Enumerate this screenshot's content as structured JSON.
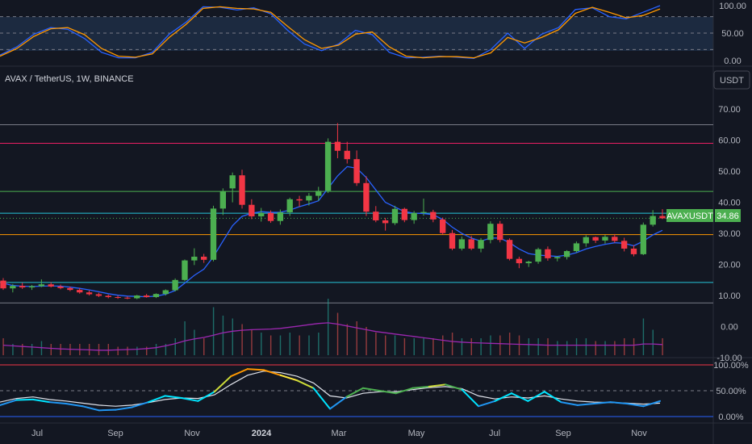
{
  "header": {
    "title": "AVAX / TetherUS, 1W, BINANCE",
    "currency_button": "USDT"
  },
  "price_badge": {
    "symbol": "AVAXUSDT",
    "value": "34.86"
  },
  "colors": {
    "background": "#131722",
    "up": "#4caf50",
    "down": "#f23645",
    "ma_blue": "#2962ff",
    "rsi_purple": "#9c27b0",
    "stoch_blue": "#2962ff",
    "stoch_orange": "#ff9800",
    "level_pink": "#e91e63",
    "level_green": "#4caf50",
    "level_teal": "#26c6da",
    "level_orange": "#ff9800",
    "level_gray": "#787b86",
    "band_red": "#f23645",
    "band_blue": "#2962ff",
    "badge_green": "#4caf50"
  },
  "chart_data": [
    {
      "type": "line",
      "panel": "stochastic",
      "yticks": [
        "100.00",
        "50.00",
        "0.00"
      ],
      "ylim": [
        0,
        100
      ],
      "levels": [
        80,
        50,
        20
      ],
      "series": [
        {
          "values": [
            10,
            25,
            48,
            60,
            57,
            40,
            15,
            5,
            5,
            15,
            48,
            70,
            98,
            97,
            92,
            96,
            85,
            55,
            30,
            18,
            30,
            55,
            47,
            15,
            5,
            6,
            8,
            6,
            4,
            20,
            50,
            22,
            48,
            60,
            93,
            96,
            80,
            76,
            88,
            100
          ]
        },
        {
          "values": [
            8,
            22,
            44,
            58,
            60,
            47,
            22,
            8,
            6,
            12,
            42,
            66,
            95,
            98,
            95,
            94,
            88,
            62,
            38,
            22,
            28,
            48,
            52,
            25,
            8,
            5,
            7,
            7,
            5,
            14,
            42,
            32,
            42,
            56,
            86,
            97,
            88,
            78,
            82,
            94
          ]
        }
      ]
    },
    {
      "type": "candlestick",
      "panel": "price",
      "symbol": "AVAX / TetherUS, 1W, BINANCE",
      "yticks": [
        "70.00",
        "60.00",
        "50.00",
        "40.00",
        "30.00",
        "20.00",
        "10.00",
        "0.00",
        "-10.00"
      ],
      "ylim": [
        -10,
        75
      ],
      "xticks": [
        "Jul",
        "Sep",
        "Nov",
        "2024",
        "Mar",
        "May",
        "Jul",
        "Sep",
        "Nov"
      ],
      "ohlc": [
        [
          14.8,
          15.6,
          11.8,
          12.3
        ],
        [
          12.3,
          13.7,
          11.0,
          13.1
        ],
        [
          13.1,
          14.1,
          12.1,
          12.6
        ],
        [
          12.6,
          13.4,
          11.8,
          13.0
        ],
        [
          13.0,
          15.2,
          12.7,
          13.6
        ],
        [
          13.6,
          14.3,
          12.6,
          12.9
        ],
        [
          12.9,
          13.5,
          12.0,
          12.4
        ],
        [
          12.4,
          12.9,
          11.4,
          11.8
        ],
        [
          11.8,
          12.4,
          10.6,
          11.0
        ],
        [
          11.0,
          11.6,
          10.0,
          10.4
        ],
        [
          10.4,
          10.9,
          9.5,
          9.9
        ],
        [
          9.9,
          10.3,
          9.1,
          9.5
        ],
        [
          9.5,
          10.0,
          8.9,
          9.3
        ],
        [
          9.3,
          9.7,
          8.8,
          9.1
        ],
        [
          9.1,
          10.2,
          8.8,
          10.0
        ],
        [
          10.0,
          10.5,
          9.3,
          9.5
        ],
        [
          9.5,
          10.7,
          9.2,
          10.5
        ],
        [
          10.5,
          12.0,
          10.0,
          11.7
        ],
        [
          11.7,
          15.5,
          11.3,
          15.0
        ],
        [
          15.0,
          21.6,
          14.6,
          21.3
        ],
        [
          21.3,
          25.2,
          19.8,
          22.5
        ],
        [
          22.5,
          23.4,
          20.5,
          21.5
        ],
        [
          21.5,
          38.9,
          21.0,
          38.0
        ],
        [
          38.0,
          44.5,
          35.9,
          43.6
        ],
        [
          44.5,
          49.6,
          40.0,
          48.7
        ],
        [
          48.7,
          50.5,
          38.0,
          39.2
        ],
        [
          39.2,
          41.0,
          34.6,
          35.5
        ],
        [
          35.5,
          38.2,
          33.8,
          36.6
        ],
        [
          36.6,
          37.4,
          33.4,
          34.0
        ],
        [
          34.0,
          37.7,
          32.8,
          36.8
        ],
        [
          36.8,
          41.5,
          35.6,
          41.0
        ],
        [
          41.0,
          42.1,
          38.6,
          40.6
        ],
        [
          40.6,
          43.0,
          39.0,
          42.1
        ],
        [
          42.1,
          45.0,
          40.5,
          43.7
        ],
        [
          43.7,
          60.6,
          43.0,
          59.5
        ],
        [
          59.5,
          65.5,
          54.2,
          56.6
        ],
        [
          56.6,
          59.5,
          52.5,
          53.9
        ],
        [
          53.9,
          56.7,
          45.3,
          46.2
        ],
        [
          46.2,
          48.4,
          35.6,
          37.0
        ],
        [
          37.0,
          38.8,
          33.6,
          34.2
        ],
        [
          34.2,
          35.0,
          30.9,
          33.3
        ],
        [
          33.3,
          38.9,
          32.7,
          37.9
        ],
        [
          37.9,
          38.3,
          33.6,
          34.3
        ],
        [
          34.3,
          37.2,
          33.1,
          36.6
        ],
        [
          36.6,
          41.2,
          35.7,
          36.9
        ],
        [
          36.9,
          37.6,
          33.6,
          34.5
        ],
        [
          34.5,
          35.1,
          29.6,
          30.1
        ],
        [
          30.1,
          31.1,
          24.6,
          25.1
        ],
        [
          25.1,
          29.0,
          24.5,
          28.1
        ],
        [
          28.1,
          29.2,
          24.6,
          25.1
        ],
        [
          25.1,
          28.5,
          23.9,
          27.9
        ],
        [
          27.9,
          33.9,
          26.8,
          33.1
        ],
        [
          33.1,
          34.0,
          27.1,
          27.9
        ],
        [
          27.9,
          28.4,
          21.3,
          21.8
        ],
        [
          21.8,
          22.5,
          18.8,
          20.4
        ],
        [
          20.4,
          21.2,
          19.2,
          20.9
        ],
        [
          20.9,
          25.4,
          20.2,
          24.9
        ],
        [
          24.9,
          25.8,
          21.2,
          22.0
        ],
        [
          22.0,
          22.6,
          21.0,
          22.4
        ],
        [
          22.4,
          24.6,
          21.6,
          24.3
        ],
        [
          24.3,
          27.4,
          23.8,
          26.8
        ],
        [
          26.8,
          29.4,
          25.7,
          28.8
        ],
        [
          28.8,
          29.0,
          26.9,
          27.7
        ],
        [
          27.7,
          29.5,
          26.7,
          28.9
        ],
        [
          28.9,
          29.8,
          27.0,
          27.6
        ],
        [
          27.6,
          28.6,
          24.2,
          25.1
        ],
        [
          25.1,
          26.2,
          22.6,
          23.3
        ],
        [
          23.3,
          33.5,
          23.0,
          32.8
        ],
        [
          32.8,
          37.5,
          32.2,
          35.6
        ],
        [
          35.6,
          37.8,
          34.6,
          34.86
        ]
      ],
      "last_price": 34.86,
      "ma": [
        14.0,
        13.2,
        13.0,
        12.9,
        13.0,
        13.1,
        13.0,
        12.7,
        12.3,
        11.8,
        11.2,
        10.6,
        10.1,
        9.8,
        9.7,
        9.6,
        9.8,
        10.4,
        11.6,
        14.0,
        16.5,
        18.5,
        22.5,
        27.5,
        32.5,
        35.5,
        36.5,
        37.0,
        36.8,
        36.8,
        37.5,
        38.6,
        39.5,
        40.5,
        44.5,
        48.5,
        51.5,
        51.0,
        48.0,
        44.0,
        40.0,
        38.5,
        37.0,
        36.5,
        36.4,
        36.0,
        34.5,
        32.0,
        30.0,
        28.5,
        27.5,
        28.5,
        28.5,
        27.0,
        25.0,
        23.5,
        23.0,
        22.8,
        22.6,
        23.0,
        23.8,
        25.0,
        25.8,
        26.5,
        27.0,
        26.8,
        26.0,
        27.5,
        29.5,
        31.0
      ],
      "levels": [
        65.0,
        59.0,
        43.5,
        36.5,
        29.6,
        14.2,
        7.6
      ],
      "level_colors": [
        "#787b86",
        "#e91e63",
        "#4caf50",
        "#26c6da",
        "#ff9800",
        "#26c6da",
        "#787b86"
      ],
      "volume": [
        0.3,
        0.2,
        0.2,
        0.2,
        0.25,
        0.2,
        0.2,
        0.2,
        0.2,
        0.2,
        0.2,
        0.2,
        0.15,
        0.15,
        0.15,
        0.15,
        0.2,
        0.2,
        0.3,
        0.6,
        0.45,
        0.3,
        0.85,
        0.7,
        0.65,
        0.55,
        0.45,
        0.4,
        0.35,
        0.35,
        0.4,
        0.35,
        0.35,
        0.4,
        1.0,
        0.75,
        0.55,
        0.6,
        0.5,
        0.4,
        0.35,
        0.35,
        0.3,
        0.3,
        0.3,
        0.3,
        0.35,
        0.4,
        0.3,
        0.3,
        0.3,
        0.35,
        0.35,
        0.4,
        0.35,
        0.3,
        0.3,
        0.3,
        0.25,
        0.25,
        0.3,
        0.3,
        0.25,
        0.25,
        0.25,
        0.3,
        0.3,
        0.65,
        0.45,
        0.3
      ],
      "rsi_line": [
        -6.0,
        -6.2,
        -6.4,
        -6.6,
        -6.8,
        -7.0,
        -7.2,
        -7.3,
        -7.4,
        -7.5,
        -7.6,
        -7.6,
        -7.5,
        -7.4,
        -7.3,
        -7.1,
        -6.8,
        -6.2,
        -5.5,
        -4.6,
        -4.0,
        -3.5,
        -2.8,
        -2.0,
        -1.5,
        -1.2,
        -1.0,
        -0.9,
        -0.8,
        -0.6,
        -0.2,
        0.2,
        0.6,
        1.0,
        1.2,
        0.8,
        0.2,
        -0.4,
        -1.0,
        -1.6,
        -2.0,
        -2.4,
        -2.8,
        -3.2,
        -3.6,
        -4.0,
        -4.4,
        -4.8,
        -5.0,
        -5.2,
        -5.3,
        -5.4,
        -5.5,
        -5.6,
        -5.7,
        -5.8,
        -5.9,
        -6.0,
        -6.0,
        -6.0,
        -6.0,
        -6.0,
        -6.0,
        -6.0,
        -6.0,
        -6.0,
        -6.0,
        -5.6,
        -5.6,
        -5.8
      ]
    },
    {
      "type": "line",
      "panel": "oscillator",
      "yticks": [
        "100.00%",
        "50.00%",
        "0.00%"
      ],
      "ylim": [
        0,
        100
      ],
      "levels": [
        100,
        50,
        0
      ],
      "series": [
        {
          "values": [
            22,
            32,
            33,
            28,
            25,
            20,
            12,
            13,
            18,
            28,
            40,
            36,
            30,
            48,
            78,
            92,
            90,
            80,
            70,
            55,
            15,
            38,
            55,
            50,
            45,
            55,
            58,
            62,
            52,
            20,
            30,
            45,
            30,
            48,
            28,
            22,
            25,
            28,
            25,
            20,
            30
          ]
        },
        {
          "values": [
            28,
            35,
            38,
            33,
            30,
            26,
            22,
            20,
            22,
            27,
            33,
            36,
            35,
            42,
            62,
            80,
            88,
            85,
            78,
            65,
            40,
            36,
            45,
            48,
            48,
            52,
            56,
            58,
            54,
            40,
            34,
            38,
            36,
            40,
            34,
            30,
            28,
            27,
            26,
            24,
            26
          ]
        }
      ]
    }
  ]
}
